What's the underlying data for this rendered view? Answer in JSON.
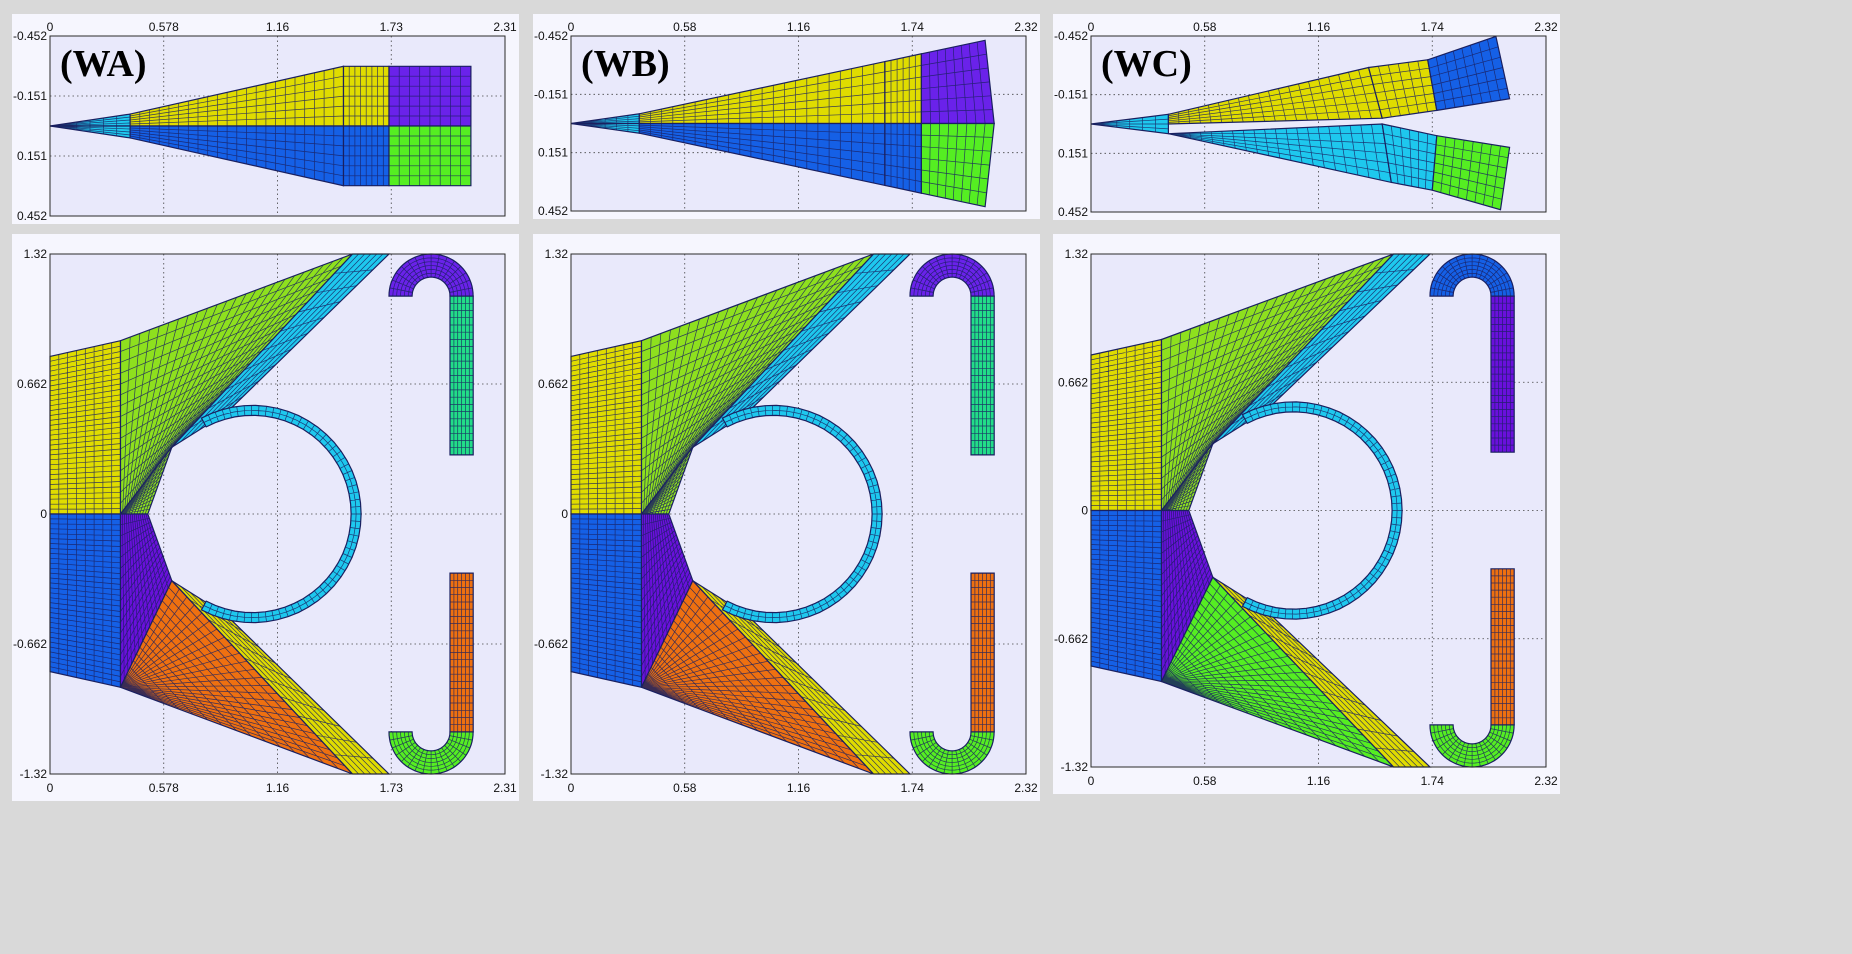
{
  "colors": {
    "yellow": "#e0dc00",
    "green": "#8ee01e",
    "bright_green": "#55ee22",
    "blue": "#1560e6",
    "cyan": "#1ec8ee",
    "purple": "#6a22ea",
    "violet": "#6a10dc",
    "orange": "#ee7010",
    "teal": "#22dd88",
    "mesh": "#1a2060",
    "plot_bg": "#e9e9fb"
  },
  "panels": [
    {
      "label": "(WA)",
      "x_ticks": [
        "0",
        "0.578",
        "1.16",
        "1.73",
        "2.31"
      ],
      "y_ticks": [
        "-0.452",
        "-0.151",
        "0.151",
        "0.452"
      ]
    },
    {
      "label": "(WB)",
      "x_ticks": [
        "0",
        "0.58",
        "1.16",
        "1.74",
        "2.32"
      ],
      "y_ticks": [
        "-0.452",
        "-0.151",
        "0.151",
        "0.452"
      ]
    },
    {
      "label": "(WC)",
      "x_ticks": [
        "0",
        "0.58",
        "1.16",
        "1.74",
        "2.32"
      ],
      "y_ticks": [
        "-0.452",
        "-0.151",
        "0.151",
        "0.452"
      ]
    },
    {
      "x_ticks": [
        "0",
        "0.578",
        "1.16",
        "1.73",
        "2.31"
      ],
      "y_ticks": [
        "1.32",
        "0.662",
        "0",
        "-0.662",
        "-1.32"
      ]
    },
    {
      "x_ticks": [
        "0",
        "0.58",
        "1.16",
        "1.74",
        "2.32"
      ],
      "y_ticks": [
        "1.32",
        "0.662",
        "0",
        "-0.662",
        "-1.32"
      ]
    },
    {
      "x_ticks": [
        "0",
        "0.58",
        "1.16",
        "1.74",
        "2.32"
      ],
      "y_ticks": [
        "1.32",
        "0.662",
        "0",
        "-0.662",
        "-1.32"
      ]
    }
  ]
}
